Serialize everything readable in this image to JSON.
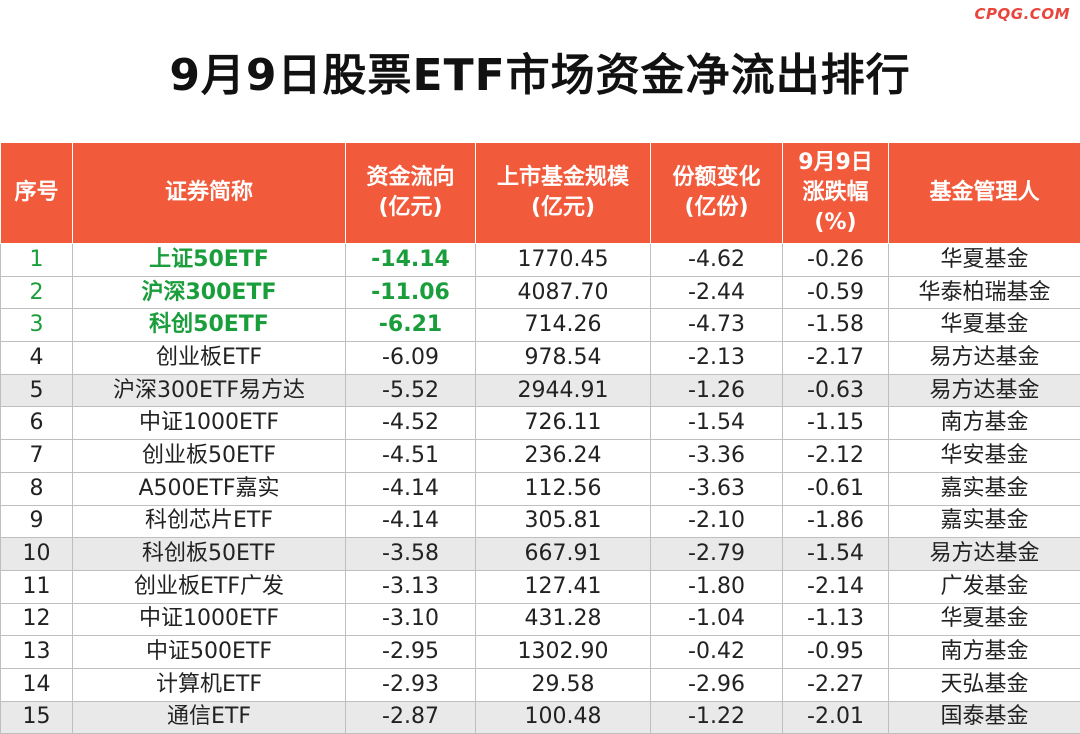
{
  "watermark": "CPQG.COM",
  "title": "9月9日股票ETF市场资金净流出排行",
  "headers": {
    "rank": [
      "序号"
    ],
    "name": [
      "证券简称"
    ],
    "flow": [
      "资金流向",
      "(亿元)"
    ],
    "scale": [
      "上市基金规模",
      "(亿元)"
    ],
    "share": [
      "份额变化",
      "(亿份)"
    ],
    "change": [
      "9月9日",
      "涨跌幅",
      "(%)"
    ],
    "manager": [
      "基金管理人"
    ]
  },
  "rows": [
    {
      "rank": "1",
      "name": "上证50ETF",
      "flow": "-14.14",
      "scale": "1770.45",
      "share": "-4.62",
      "change": "-0.26",
      "manager": "华夏基金"
    },
    {
      "rank": "2",
      "name": "沪深300ETF",
      "flow": "-11.06",
      "scale": "4087.70",
      "share": "-2.44",
      "change": "-0.59",
      "manager": "华泰柏瑞基金"
    },
    {
      "rank": "3",
      "name": "科创50ETF",
      "flow": "-6.21",
      "scale": "714.26",
      "share": "-4.73",
      "change": "-1.58",
      "manager": "华夏基金"
    },
    {
      "rank": "4",
      "name": "创业板ETF",
      "flow": "-6.09",
      "scale": "978.54",
      "share": "-2.13",
      "change": "-2.17",
      "manager": "易方达基金"
    },
    {
      "rank": "5",
      "name": "沪深300ETF易方达",
      "flow": "-5.52",
      "scale": "2944.91",
      "share": "-1.26",
      "change": "-0.63",
      "manager": "易方达基金"
    },
    {
      "rank": "6",
      "name": "中证1000ETF",
      "flow": "-4.52",
      "scale": "726.11",
      "share": "-1.54",
      "change": "-1.15",
      "manager": "南方基金"
    },
    {
      "rank": "7",
      "name": "创业板50ETF",
      "flow": "-4.51",
      "scale": "236.24",
      "share": "-3.36",
      "change": "-2.12",
      "manager": "华安基金"
    },
    {
      "rank": "8",
      "name": "A500ETF嘉实",
      "flow": "-4.14",
      "scale": "112.56",
      "share": "-3.63",
      "change": "-0.61",
      "manager": "嘉实基金"
    },
    {
      "rank": "9",
      "name": "科创芯片ETF",
      "flow": "-4.14",
      "scale": "305.81",
      "share": "-2.10",
      "change": "-1.86",
      "manager": "嘉实基金"
    },
    {
      "rank": "10",
      "name": "科创板50ETF",
      "flow": "-3.58",
      "scale": "667.91",
      "share": "-2.79",
      "change": "-1.54",
      "manager": "易方达基金"
    },
    {
      "rank": "11",
      "name": "创业板ETF广发",
      "flow": "-3.13",
      "scale": "127.41",
      "share": "-1.80",
      "change": "-2.14",
      "manager": "广发基金"
    },
    {
      "rank": "12",
      "name": "中证1000ETF",
      "flow": "-3.10",
      "scale": "431.28",
      "share": "-1.04",
      "change": "-1.13",
      "manager": "华夏基金"
    },
    {
      "rank": "13",
      "name": "中证500ETF",
      "flow": "-2.95",
      "scale": "1302.90",
      "share": "-0.42",
      "change": "-0.95",
      "manager": "南方基金"
    },
    {
      "rank": "14",
      "name": "计算机ETF",
      "flow": "-2.93",
      "scale": "29.58",
      "share": "-2.96",
      "change": "-2.27",
      "manager": "天弘基金"
    },
    {
      "rank": "15",
      "name": "通信ETF",
      "flow": "-2.87",
      "scale": "100.48",
      "share": "-1.22",
      "change": "-2.01",
      "manager": "国泰基金"
    }
  ],
  "highlighted_rows": 3,
  "colors": {
    "header_bg": "#f25a3c",
    "highlight_text": "#1a9e3c",
    "alt_row_bg": "#e9e9e9"
  }
}
